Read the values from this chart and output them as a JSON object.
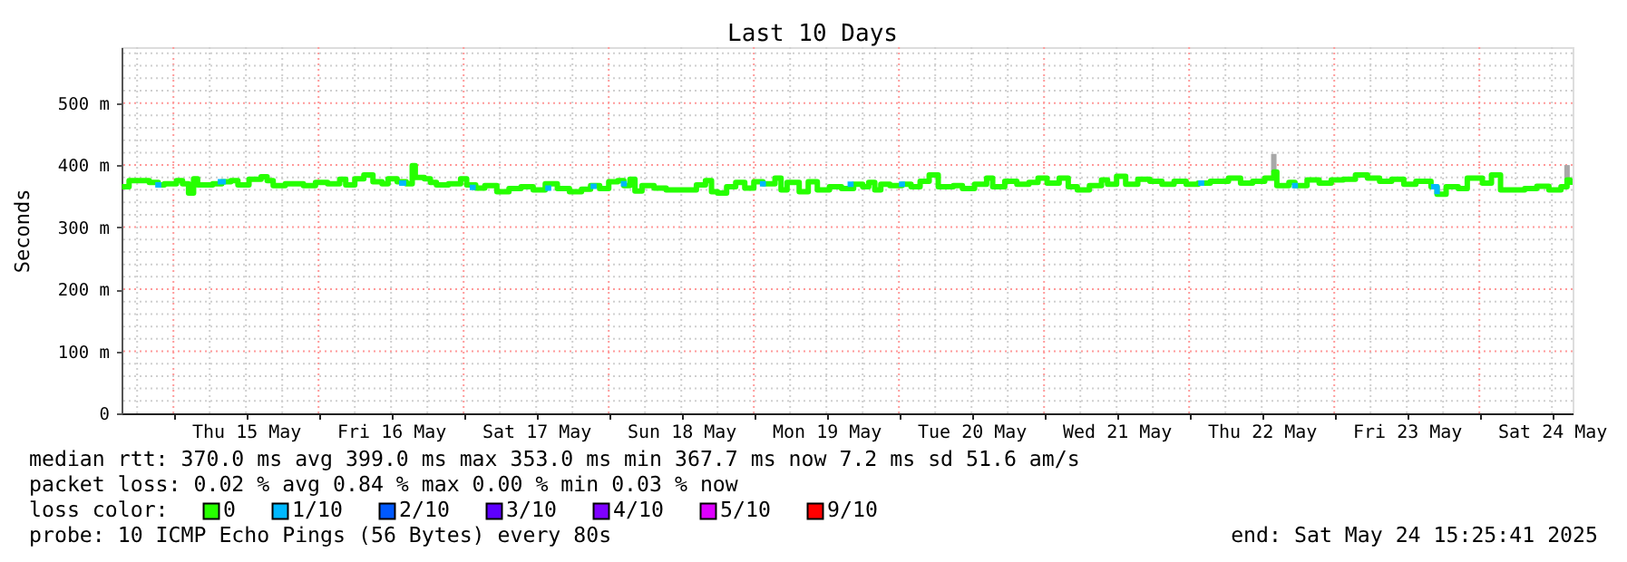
{
  "chart_data": {
    "type": "step",
    "title": "Last 10 Days",
    "ylabel": "Seconds",
    "legend_title": "loss color:",
    "legend": "bottom",
    "grid": true,
    "xlim": [
      "2025-05-14T15:25",
      "2025-05-24T15:25"
    ],
    "xticks": [
      {
        "value": "2025-05-15T00:00",
        "label": null
      },
      {
        "value": "2025-05-15T12:00",
        "label": "Thu 15 May"
      },
      {
        "value": "2025-05-16T00:00",
        "label": null
      },
      {
        "value": "2025-05-16T12:00",
        "label": "Fri 16 May"
      },
      {
        "value": "2025-05-17T00:00",
        "label": null
      },
      {
        "value": "2025-05-17T12:00",
        "label": "Sat 17 May"
      },
      {
        "value": "2025-05-18T00:00",
        "label": null
      },
      {
        "value": "2025-05-18T12:00",
        "label": "Sun 18 May"
      },
      {
        "value": "2025-05-19T00:00",
        "label": null
      },
      {
        "value": "2025-05-19T12:00",
        "label": "Mon 19 May"
      },
      {
        "value": "2025-05-20T00:00",
        "label": null
      },
      {
        "value": "2025-05-20T12:00",
        "label": "Tue 20 May"
      },
      {
        "value": "2025-05-21T00:00",
        "label": null
      },
      {
        "value": "2025-05-21T12:00",
        "label": "Wed 21 May"
      },
      {
        "value": "2025-05-22T00:00",
        "label": null
      },
      {
        "value": "2025-05-22T12:00",
        "label": "Thu 22 May"
      },
      {
        "value": "2025-05-23T00:00",
        "label": null
      },
      {
        "value": "2025-05-23T12:00",
        "label": "Fri 23 May"
      },
      {
        "value": "2025-05-24T00:00",
        "label": null
      },
      {
        "value": "2025-05-24T12:00",
        "label": "Sat 24 May"
      }
    ],
    "ylim": [
      0,
      590
    ],
    "yticks": [
      0,
      {
        "value": 100,
        "label": "100 m"
      },
      {
        "value": 200,
        "label": "200 m"
      },
      {
        "value": 300,
        "label": "300 m"
      },
      {
        "value": 400,
        "label": "400 m"
      },
      {
        "value": 500,
        "label": "500 m"
      }
    ],
    "series": [
      {
        "name": "0",
        "color": "#26ff00",
        "x": [
          "2025-05-14T15:30",
          "2025-05-14T16:40",
          "2025-05-14T18:30",
          "2025-05-14T20:00",
          "2025-05-14T21:30",
          "2025-05-14T22:30",
          "2025-05-15T00:30",
          "2025-05-15T01:30",
          "2025-05-15T02:30",
          "2025-05-15T03:20",
          "2025-05-15T04:00",
          "2025-05-15T06:30",
          "2025-05-15T08:00",
          "2025-05-15T09:30",
          "2025-05-15T10:40",
          "2025-05-15T12:30",
          "2025-05-15T14:30",
          "2025-05-15T15:30",
          "2025-05-15T16:30",
          "2025-05-15T18:30",
          "2025-05-15T21:30",
          "2025-05-15T23:30",
          "2025-05-16T01:30",
          "2025-05-16T03:00",
          "2025-05-16T03:30",
          "2025-05-16T04:30",
          "2025-05-16T06:00",
          "2025-05-16T07:30",
          "2025-05-16T09:00",
          "2025-05-16T10:30",
          "2025-05-16T11:30",
          "2025-05-16T13:00",
          "2025-05-16T14:30",
          "2025-05-16T15:30",
          "2025-05-16T16:00",
          "2025-05-16T17:30",
          "2025-05-16T18:30",
          "2025-05-16T19:30",
          "2025-05-16T21:30",
          "2025-05-16T23:30",
          "2025-05-17T00:30",
          "2025-05-17T02:00",
          "2025-05-17T03:30",
          "2025-05-17T05:30",
          "2025-05-17T07:30",
          "2025-05-17T09:30",
          "2025-05-17T11:30",
          "2025-05-17T13:30",
          "2025-05-17T15:30",
          "2025-05-17T17:30",
          "2025-05-17T19:30",
          "2025-05-17T21:00",
          "2025-05-17T22:30",
          "2025-05-18T00:00",
          "2025-05-18T01:30",
          "2025-05-18T02:30",
          "2025-05-18T03:30",
          "2025-05-18T04:20",
          "2025-05-18T05:30",
          "2025-05-18T07:30",
          "2025-05-18T09:30",
          "2025-05-18T12:30",
          "2025-05-18T14:30",
          "2025-05-18T16:00",
          "2025-05-18T17:00",
          "2025-05-18T18:00",
          "2025-05-18T19:30",
          "2025-05-18T21:00",
          "2025-05-18T22:30",
          "2025-05-19T00:00",
          "2025-05-19T01:30",
          "2025-05-19T03:30",
          "2025-05-19T04:30",
          "2025-05-19T05:30",
          "2025-05-19T07:30",
          "2025-05-19T09:00",
          "2025-05-19T10:30",
          "2025-05-19T12:30",
          "2025-05-19T14:30",
          "2025-05-19T16:30",
          "2025-05-19T18:00",
          "2025-05-19T19:00",
          "2025-05-19T20:00",
          "2025-05-19T21:00",
          "2025-05-19T22:30",
          "2025-05-20T00:30",
          "2025-05-20T02:00",
          "2025-05-20T03:30",
          "2025-05-20T05:00",
          "2025-05-20T06:30",
          "2025-05-20T09:00",
          "2025-05-20T10:30",
          "2025-05-20T12:30",
          "2025-05-20T14:30",
          "2025-05-20T15:30",
          "2025-05-20T17:30",
          "2025-05-20T19:30",
          "2025-05-20T21:30",
          "2025-05-20T23:00",
          "2025-05-21T00:30",
          "2025-05-21T02:30",
          "2025-05-21T04:00",
          "2025-05-21T05:30",
          "2025-05-21T07:30",
          "2025-05-21T09:30",
          "2025-05-21T10:30",
          "2025-05-21T12:00",
          "2025-05-21T13:30",
          "2025-05-21T15:30",
          "2025-05-21T17:30",
          "2025-05-21T19:30",
          "2025-05-21T21:30",
          "2025-05-21T23:30",
          "2025-05-22T01:30",
          "2025-05-22T03:30",
          "2025-05-22T06:30",
          "2025-05-22T08:30",
          "2025-05-22T10:30",
          "2025-05-22T12:30",
          "2025-05-22T14:00",
          "2025-05-22T14:30",
          "2025-05-22T16:30",
          "2025-05-22T17:30",
          "2025-05-22T19:30",
          "2025-05-22T21:30",
          "2025-05-22T23:30",
          "2025-05-23T01:30",
          "2025-05-23T03:30",
          "2025-05-23T05:30",
          "2025-05-23T07:30",
          "2025-05-23T09:30",
          "2025-05-23T11:30",
          "2025-05-23T13:30",
          "2025-05-23T16:00",
          "2025-05-23T17:00",
          "2025-05-23T18:30",
          "2025-05-23T20:30",
          "2025-05-23T22:00",
          "2025-05-24T00:30",
          "2025-05-24T02:00",
          "2025-05-24T03:30",
          "2025-05-24T05:30",
          "2025-05-24T07:30",
          "2025-05-24T09:30",
          "2025-05-24T11:30",
          "2025-05-24T13:30",
          "2025-05-24T14:30",
          "2025-05-24T15:00"
        ],
        "values": [
          365,
          375,
          375,
          372,
          368,
          370,
          375,
          370,
          355,
          378,
          368,
          370,
          373,
          375,
          368,
          377,
          381,
          375,
          367,
          370,
          367,
          372,
          370,
          370,
          377,
          368,
          378,
          384,
          373,
          370,
          378,
          373,
          370,
          399,
          380,
          378,
          372,
          368,
          370,
          378,
          368,
          363,
          367,
          357,
          362,
          365,
          360,
          370,
          362,
          357,
          361,
          367,
          362,
          373,
          375,
          367,
          377,
          358,
          367,
          363,
          360,
          360,
          368,
          375,
          357,
          355,
          365,
          372,
          363,
          373,
          370,
          379,
          360,
          372,
          357,
          373,
          360,
          365,
          362,
          369,
          365,
          372,
          360,
          369,
          367,
          369,
          365,
          374,
          384,
          365,
          367,
          362,
          369,
          379,
          365,
          374,
          369,
          372,
          379,
          371,
          379,
          365,
          360,
          367,
          376,
          369,
          382,
          369,
          377,
          374,
          369,
          374,
          369,
          371,
          374,
          379,
          371,
          374,
          379,
          389,
          367,
          372,
          367,
          376,
          371,
          376,
          377,
          384,
          379,
          374,
          377,
          369,
          374,
          365,
          353,
          365,
          362,
          379,
          371,
          384,
          360,
          360,
          362,
          366,
          360,
          365,
          376,
          368
        ],
        "errors": [
          null,
          null,
          null,
          null,
          null,
          null,
          null,
          null,
          null,
          null,
          null,
          null,
          null,
          null,
          null,
          null,
          null,
          null,
          null,
          null,
          null,
          null,
          null,
          null,
          null,
          null,
          null,
          null,
          null,
          null,
          null,
          null,
          null,
          null,
          null,
          null,
          null,
          null,
          null,
          null,
          null,
          null,
          null,
          null,
          null,
          null,
          null,
          null,
          null,
          null,
          null,
          null,
          null,
          null,
          null,
          null,
          null,
          null,
          null,
          null,
          null,
          null,
          null,
          null,
          null,
          null,
          null,
          null,
          null,
          null,
          null,
          null,
          null,
          null,
          null,
          null,
          null,
          null,
          null,
          null,
          null,
          null,
          null,
          null,
          null,
          null,
          null,
          null,
          null,
          null,
          null,
          null,
          null,
          null,
          null,
          null,
          null,
          null,
          null,
          null,
          null,
          null,
          null,
          null,
          null,
          null,
          null,
          null,
          null,
          null,
          null,
          null,
          null,
          null,
          null,
          null,
          null,
          null,
          null,
          [
            389,
            418
          ],
          null,
          null,
          null,
          null,
          null,
          null,
          null,
          null,
          null,
          null,
          null,
          null,
          null,
          null,
          null,
          null,
          null,
          null,
          null,
          null,
          null,
          null,
          null,
          null,
          null,
          null,
          [
            376,
            400
          ],
          null
        ]
      },
      {
        "name": "1/10",
        "color": "#00b8ff",
        "x": [
          "2025-05-14T21:00",
          "2025-05-14T22:00",
          "2025-05-14T23:00",
          "2025-05-15T07:20",
          "2025-05-15T08:40",
          "2025-05-15T09:00",
          "2025-05-16T13:20",
          "2025-05-16T14:30",
          "2025-05-16T15:00",
          "2025-05-17T01:00",
          "2025-05-17T02:00",
          "2025-05-17T03:00",
          "2025-05-17T13:30",
          "2025-05-17T14:30",
          "2025-05-17T15:00",
          "2025-05-17T21:00",
          "2025-05-17T22:00",
          "2025-05-17T23:00",
          "2025-05-18T02:00",
          "2025-05-18T03:00",
          "2025-05-18T04:00",
          "2025-05-19T01:00",
          "2025-05-19T02:00",
          "2025-05-19T03:00",
          "2025-05-19T15:30",
          "2025-05-19T16:30",
          "2025-05-19T17:00",
          "2025-05-20T00:00",
          "2025-05-20T01:00",
          "2025-05-20T02:00",
          "2025-05-22T01:30",
          "2025-05-22T02:30",
          "2025-05-22T03:00",
          "2025-05-22T17:00",
          "2025-05-22T18:00",
          "2025-05-22T19:00",
          "2025-05-23T16:00",
          "2025-05-23T17:00"
        ],
        "values": [
          368,
          368,
          null,
          373,
          373,
          null,
          371,
          371,
          null,
          364,
          364,
          null,
          363,
          363,
          null,
          366,
          366,
          null,
          370,
          370,
          null,
          370,
          370,
          null,
          369,
          369,
          null,
          369,
          369,
          null,
          371,
          371,
          null,
          367,
          367,
          null,
          365,
          353
        ]
      },
      {
        "name": "2/10",
        "color": "#0059ff"
      },
      {
        "name": "3/10",
        "color": "#5e00ff"
      },
      {
        "name": "4/10",
        "color": "#7e00ff"
      },
      {
        "name": "5/10",
        "color": "#dd00ff"
      },
      {
        "name": "9/10",
        "color": "#ff0000"
      }
    ],
    "annotations": [
      "median rtt: 370.0 ms avg 399.0 ms max 353.0 ms min 367.7 ms now 7.2 ms sd 51.6 am/s",
      "packet loss: 0.02 % avg 0.84 % max 0.00 % min 0.03 % now",
      "probe: 10 ICMP Echo Pings (56 Bytes) every 80s",
      "end: Sat May 24 15:25:41 2025"
    ]
  }
}
